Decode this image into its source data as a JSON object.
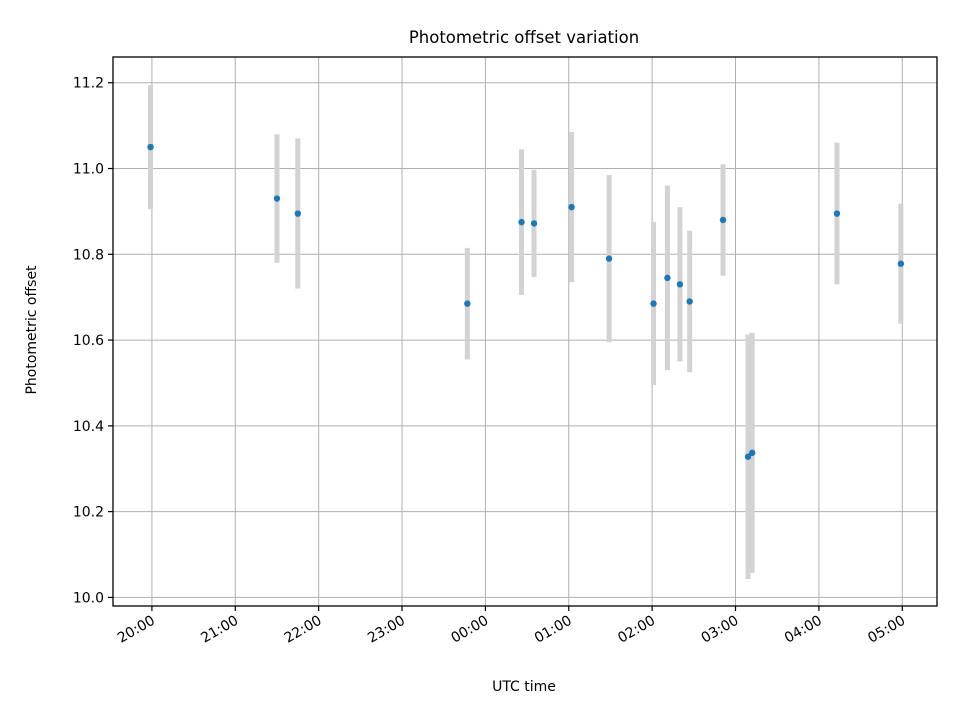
{
  "chart_data": {
    "type": "scatter",
    "title": "Photometric offset variation",
    "xlabel": "UTC time",
    "ylabel": "Photometric offset",
    "x_unit": "UTC hh:mm (times after 23:59 are on the following day)",
    "x_range": [
      "19:32",
      "05:25"
    ],
    "ylim": [
      9.98,
      11.26
    ],
    "grid": true,
    "legend": "none",
    "colors": {
      "marker": "#1f77b4",
      "errorbar": "#d3d3d3",
      "grid": "#b0b0b0"
    },
    "x_ticks": [
      "20:00",
      "21:00",
      "22:00",
      "23:00",
      "00:00",
      "01:00",
      "02:00",
      "03:00",
      "04:00",
      "05:00"
    ],
    "y_ticks": [
      "10.0",
      "10.2",
      "10.4",
      "10.6",
      "10.8",
      "11.0",
      "11.2"
    ],
    "points": [
      {
        "time": "19:59",
        "y": 11.05,
        "err": 0.145
      },
      {
        "time": "21:30",
        "y": 10.93,
        "err": 0.15
      },
      {
        "time": "21:45",
        "y": 10.895,
        "err": 0.175
      },
      {
        "time": "23:47",
        "y": 10.685,
        "err": 0.13
      },
      {
        "time": "00:26",
        "y": 10.875,
        "err": 0.17
      },
      {
        "time": "00:35",
        "y": 10.872,
        "err": 0.125
      },
      {
        "time": "01:02",
        "y": 10.91,
        "err": 0.175
      },
      {
        "time": "01:29",
        "y": 10.79,
        "err": 0.195
      },
      {
        "time": "02:01",
        "y": 10.685,
        "err": 0.19
      },
      {
        "time": "02:11",
        "y": 10.745,
        "err": 0.215
      },
      {
        "time": "02:20",
        "y": 10.73,
        "err": 0.18
      },
      {
        "time": "02:27",
        "y": 10.69,
        "err": 0.165
      },
      {
        "time": "02:51",
        "y": 10.88,
        "err": 0.13
      },
      {
        "time": "03:09",
        "y": 10.328,
        "err": 0.285
      },
      {
        "time": "03:12",
        "y": 10.337,
        "err": 0.28
      },
      {
        "time": "04:13",
        "y": 10.895,
        "err": 0.165
      },
      {
        "time": "04:59",
        "y": 10.778,
        "err": 0.14
      }
    ]
  }
}
